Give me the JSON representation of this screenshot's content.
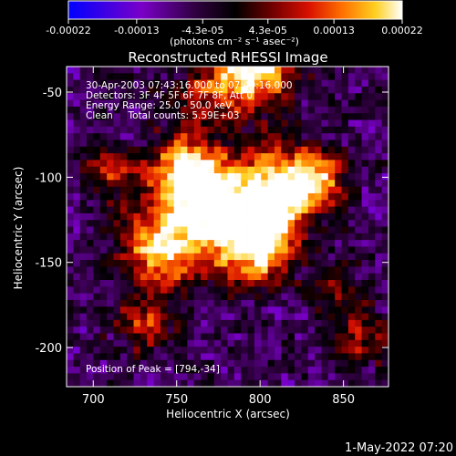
{
  "chart_data": {
    "type": "heatmap",
    "title": "Reconstructed RHESSI Image",
    "xlabel": "Heliocentric X (arcsec)",
    "ylabel": "Heliocentric Y (arcsec)",
    "xlim": [
      684,
      877
    ],
    "ylim": [
      -223,
      -35
    ],
    "x_ticks": [
      700,
      750,
      800,
      850
    ],
    "y_ticks": [
      -50,
      -100,
      -150,
      -200
    ],
    "colorbar": {
      "range": [
        -0.00022,
        0.00022
      ],
      "tick_values": [
        -0.00022,
        -0.00013,
        -4.3e-05,
        4.3e-05,
        0.00013,
        0.00022
      ],
      "tick_labels": [
        "-0.00022",
        "-0.00013",
        "-4.3e-05",
        "4.3e-05",
        "0.00013",
        "0.00022"
      ],
      "unit_label": "(photons cm⁻² s⁻¹ asec⁻²)",
      "colors": [
        "#0000ff",
        "#7a00c8",
        "#300040",
        "#000000",
        "#7a0000",
        "#d81000",
        "#ff7000",
        "#ffd020",
        "#ffffff"
      ]
    },
    "sources": [
      {
        "x": 794,
        "y": -34,
        "peak": 1.0,
        "size": 18
      },
      {
        "x": 778,
        "y": -120,
        "peak": 0.9,
        "size": 20
      },
      {
        "x": 812,
        "y": -108,
        "peak": 0.85,
        "size": 16
      },
      {
        "x": 755,
        "y": -97,
        "peak": 0.8,
        "size": 15
      },
      {
        "x": 742,
        "y": -140,
        "peak": 0.75,
        "size": 18
      },
      {
        "x": 800,
        "y": -142,
        "peak": 0.8,
        "size": 14
      },
      {
        "x": 835,
        "y": -100,
        "peak": 0.6,
        "size": 12
      },
      {
        "x": 710,
        "y": -95,
        "peak": 0.45,
        "size": 10
      },
      {
        "x": 730,
        "y": -185,
        "peak": 0.45,
        "size": 12
      },
      {
        "x": 860,
        "y": -195,
        "peak": 0.4,
        "size": 12
      },
      {
        "x": 845,
        "y": -165,
        "peak": 0.35,
        "size": 10
      },
      {
        "x": 765,
        "y": -55,
        "peak": 0.3,
        "size": 12
      }
    ],
    "annotations": {
      "line1": "30-Apr-2003 07:43:16.000 to 07:49:16.000",
      "line2": "Detectors: 3F 4F 5F 6F 7F 8F, Att 0",
      "line3": "Energy Range: 25.0 - 50.0 keV",
      "line4": "Clean     Total counts: 5.59E+03",
      "peak_label": "Position of Peak = [794,-34]"
    }
  },
  "footer": {
    "timestamp": "1-May-2022 07:20"
  }
}
